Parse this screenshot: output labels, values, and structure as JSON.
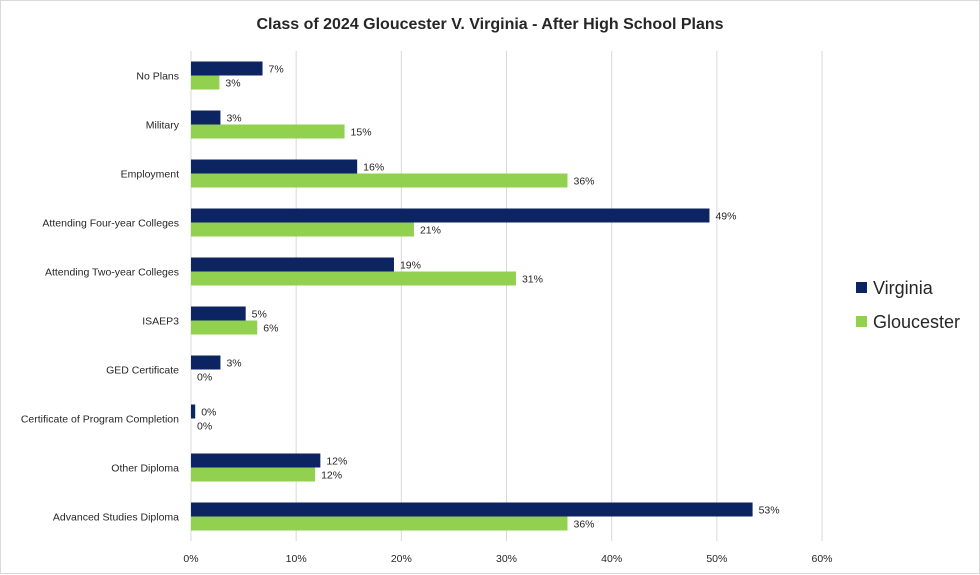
{
  "chart_data": {
    "type": "bar",
    "orientation": "horizontal",
    "title": "Class of 2024 Gloucester V. Virginia - After High School Plans",
    "categories": [
      "No Plans",
      "Military",
      "Employment",
      "Attending Four-year Colleges",
      "Attending Two-year Colleges",
      "ISAEP3",
      "GED Certificate",
      "Certificate of Program Completion",
      "Other Diploma",
      "Advanced Studies Diploma"
    ],
    "series": [
      {
        "name": "Virginia",
        "color": "#0c2461",
        "values": [
          6.8,
          2.8,
          15.8,
          49.3,
          19.3,
          5.2,
          2.8,
          0.4,
          12.3,
          53.4
        ],
        "labels": [
          "7%",
          "3%",
          "16%",
          "49%",
          "19%",
          "5%",
          "3%",
          "0%",
          "12%",
          "53%"
        ]
      },
      {
        "name": "Gloucester",
        "color": "#92d050",
        "values": [
          2.7,
          14.6,
          35.8,
          21.2,
          30.9,
          6.3,
          0,
          0,
          11.8,
          35.8
        ],
        "labels": [
          "3%",
          "15%",
          "36%",
          "21%",
          "31%",
          "6%",
          "0%",
          "0%",
          "12%",
          "36%"
        ]
      }
    ],
    "xlim": [
      0,
      60
    ],
    "xticks": [
      0,
      10,
      20,
      30,
      40,
      50,
      60
    ],
    "xtick_labels": [
      "0%",
      "10%",
      "20%",
      "30%",
      "40%",
      "50%",
      "60%"
    ],
    "xlabel": "",
    "ylabel": "",
    "grid": true,
    "legend_position": "right"
  }
}
